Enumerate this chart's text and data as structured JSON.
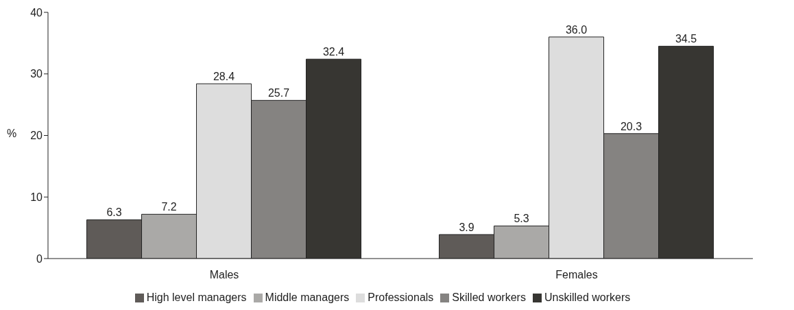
{
  "chart_data": {
    "type": "bar",
    "ylabel": "%",
    "categories": [
      "Males",
      "Females"
    ],
    "series": [
      {
        "name": "High level managers",
        "color": "#5f5b58",
        "values": [
          6.3,
          3.9
        ]
      },
      {
        "name": "Middle managers",
        "color": "#aaa9a7",
        "values": [
          7.2,
          5.3
        ]
      },
      {
        "name": "Professionals",
        "color": "#dddddd",
        "values": [
          28.4,
          36.0
        ]
      },
      {
        "name": "Skilled workers",
        "color": "#858381",
        "values": [
          25.7,
          20.3
        ]
      },
      {
        "name": "Unskilled workers",
        "color": "#373632",
        "values": [
          32.4,
          34.5
        ]
      }
    ],
    "value_labels": [
      [
        "6.3",
        "3.9"
      ],
      [
        "7.2",
        "5.3"
      ],
      [
        "28.4",
        "36.0"
      ],
      [
        "25.7",
        "20.3"
      ],
      [
        "32.4",
        "34.5"
      ]
    ],
    "ylim": [
      0,
      40
    ],
    "yticks": [
      0,
      10,
      20,
      30,
      40
    ],
    "grid": false,
    "legend": "bottom"
  }
}
